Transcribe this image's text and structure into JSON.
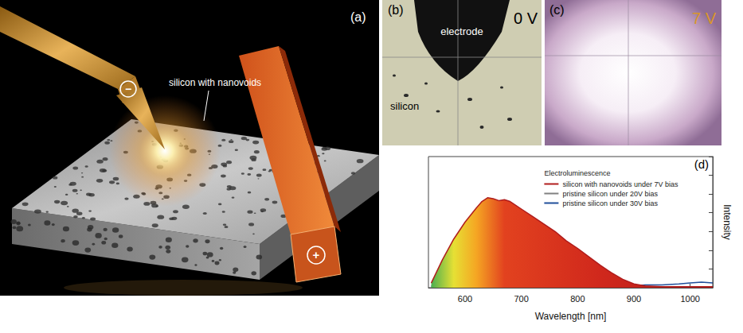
{
  "panels": {
    "a": {
      "letter": "(a)",
      "label": "silicon with nanovoids",
      "cathode": "−",
      "anode": "+"
    },
    "b": {
      "letter": "(b)",
      "voltage": "0 V",
      "electrode": "electrode",
      "sample": "silicon"
    },
    "c": {
      "letter": "(c)",
      "voltage": "7 V"
    },
    "d": {
      "letter": "(d)"
    }
  },
  "chart_data": {
    "type": "line",
    "xlabel": "Wavelength [nm]",
    "ylabel": "Intensity",
    "legend_title": "Electroluminescence",
    "x": [
      540,
      560,
      580,
      600,
      620,
      630,
      640,
      650,
      660,
      670,
      680,
      700,
      720,
      740,
      760,
      780,
      800,
      820,
      840,
      860,
      880,
      900,
      920,
      950,
      980,
      1000,
      1020,
      1040
    ],
    "series": [
      {
        "name": "silicon with nanovoids under 7V bias",
        "color": "#b01c1c",
        "values": [
          5,
          30,
          52,
          70,
          85,
          92,
          96,
          95,
          93,
          94,
          92,
          84,
          76,
          68,
          60,
          50,
          42,
          33,
          24,
          16,
          9,
          4,
          2,
          1,
          1,
          1,
          1,
          1
        ]
      },
      {
        "name": "pristine silicon under 20V bias",
        "color": "#808080",
        "values": [
          1,
          1,
          1,
          1,
          1,
          1,
          1,
          1,
          1,
          1,
          1,
          1,
          1,
          1,
          1,
          1,
          1,
          1,
          1,
          1,
          1,
          1,
          1,
          1,
          1,
          1,
          1,
          1
        ]
      },
      {
        "name": "pristine silicon under 30V bias",
        "color": "#1f4e9a",
        "values": [
          2,
          2,
          2,
          2,
          2,
          2,
          2,
          2,
          2,
          2,
          2,
          2,
          2,
          2,
          2,
          2,
          2,
          2,
          2,
          2,
          2,
          2,
          3,
          3,
          4,
          5,
          6,
          5
        ]
      }
    ],
    "xlim": [
      535,
      1040
    ],
    "xticks": [
      600,
      700,
      800,
      900,
      1000
    ],
    "ylim": [
      0,
      140
    ],
    "yticks": [
      0,
      20,
      40,
      60,
      80,
      100,
      120,
      140
    ],
    "tick_labels": "x",
    "grid": false,
    "legend": "upper right"
  }
}
